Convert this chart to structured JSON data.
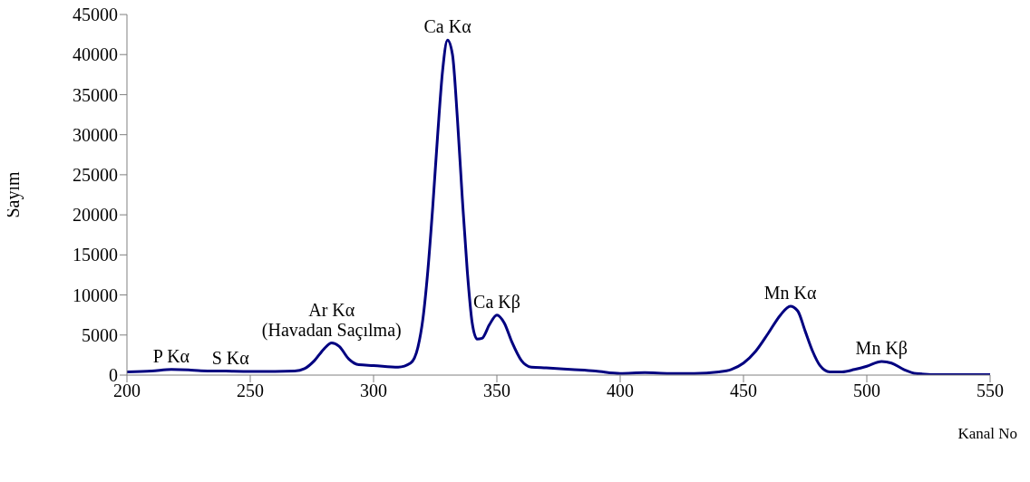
{
  "chart_data": {
    "type": "line",
    "xlabel": "Kanal No",
    "ylabel": "Sayım",
    "color": "#000080",
    "x": [
      200,
      210,
      218,
      225,
      230,
      240,
      250,
      260,
      268,
      272,
      276,
      280,
      283,
      286,
      290,
      294,
      300,
      310,
      315,
      318,
      320,
      322,
      324,
      326,
      328,
      330,
      332,
      334,
      336,
      338,
      340,
      342,
      344,
      347,
      350,
      353,
      356,
      360,
      364,
      370,
      380,
      390,
      400,
      410,
      420,
      430,
      440,
      445,
      450,
      455,
      460,
      465,
      469,
      472,
      475,
      478,
      481,
      485,
      490,
      495,
      500,
      506,
      510,
      515,
      520,
      530,
      540,
      550
    ],
    "values": [
      400,
      500,
      700,
      650,
      550,
      500,
      450,
      450,
      500,
      800,
      1800,
      3300,
      4000,
      3600,
      2000,
      1300,
      1200,
      1000,
      1500,
      3500,
      7000,
      13000,
      21000,
      30000,
      38000,
      41800,
      40000,
      32000,
      22000,
      13000,
      6500,
      4500,
      4600,
      6300,
      7500,
      6500,
      4200,
      1800,
      1000,
      900,
      700,
      500,
      200,
      300,
      200,
      200,
      400,
      700,
      1500,
      3000,
      5200,
      7500,
      8600,
      8000,
      5500,
      3000,
      1200,
      400,
      400,
      700,
      1100,
      1700,
      1500,
      700,
      200,
      50,
      50,
      50
    ],
    "xlim": [
      200,
      550
    ],
    "xticks": [
      200,
      250,
      300,
      350,
      400,
      450,
      500,
      550
    ],
    "ylim": [
      0,
      45000
    ],
    "yticks": [
      0,
      5000,
      10000,
      15000,
      20000,
      25000,
      30000,
      35000,
      40000,
      45000
    ],
    "grid": false,
    "legend": false,
    "marker": "none",
    "line_style": "solid",
    "annotations": [
      {
        "text": "P Kα",
        "x": 218,
        "y": 700
      },
      {
        "text": "S Kα",
        "x": 242,
        "y": 500
      },
      {
        "text": "Ar Kα\n(Havadan Saçılma)",
        "x": 283,
        "y": 4000
      },
      {
        "text": "Ca Kα",
        "x": 330,
        "y": 41800
      },
      {
        "text": "Ca Kβ",
        "x": 350,
        "y": 7500
      },
      {
        "text": "Mn Kα",
        "x": 469,
        "y": 8600
      },
      {
        "text": "Mn Kβ",
        "x": 506,
        "y": 1700
      }
    ]
  }
}
